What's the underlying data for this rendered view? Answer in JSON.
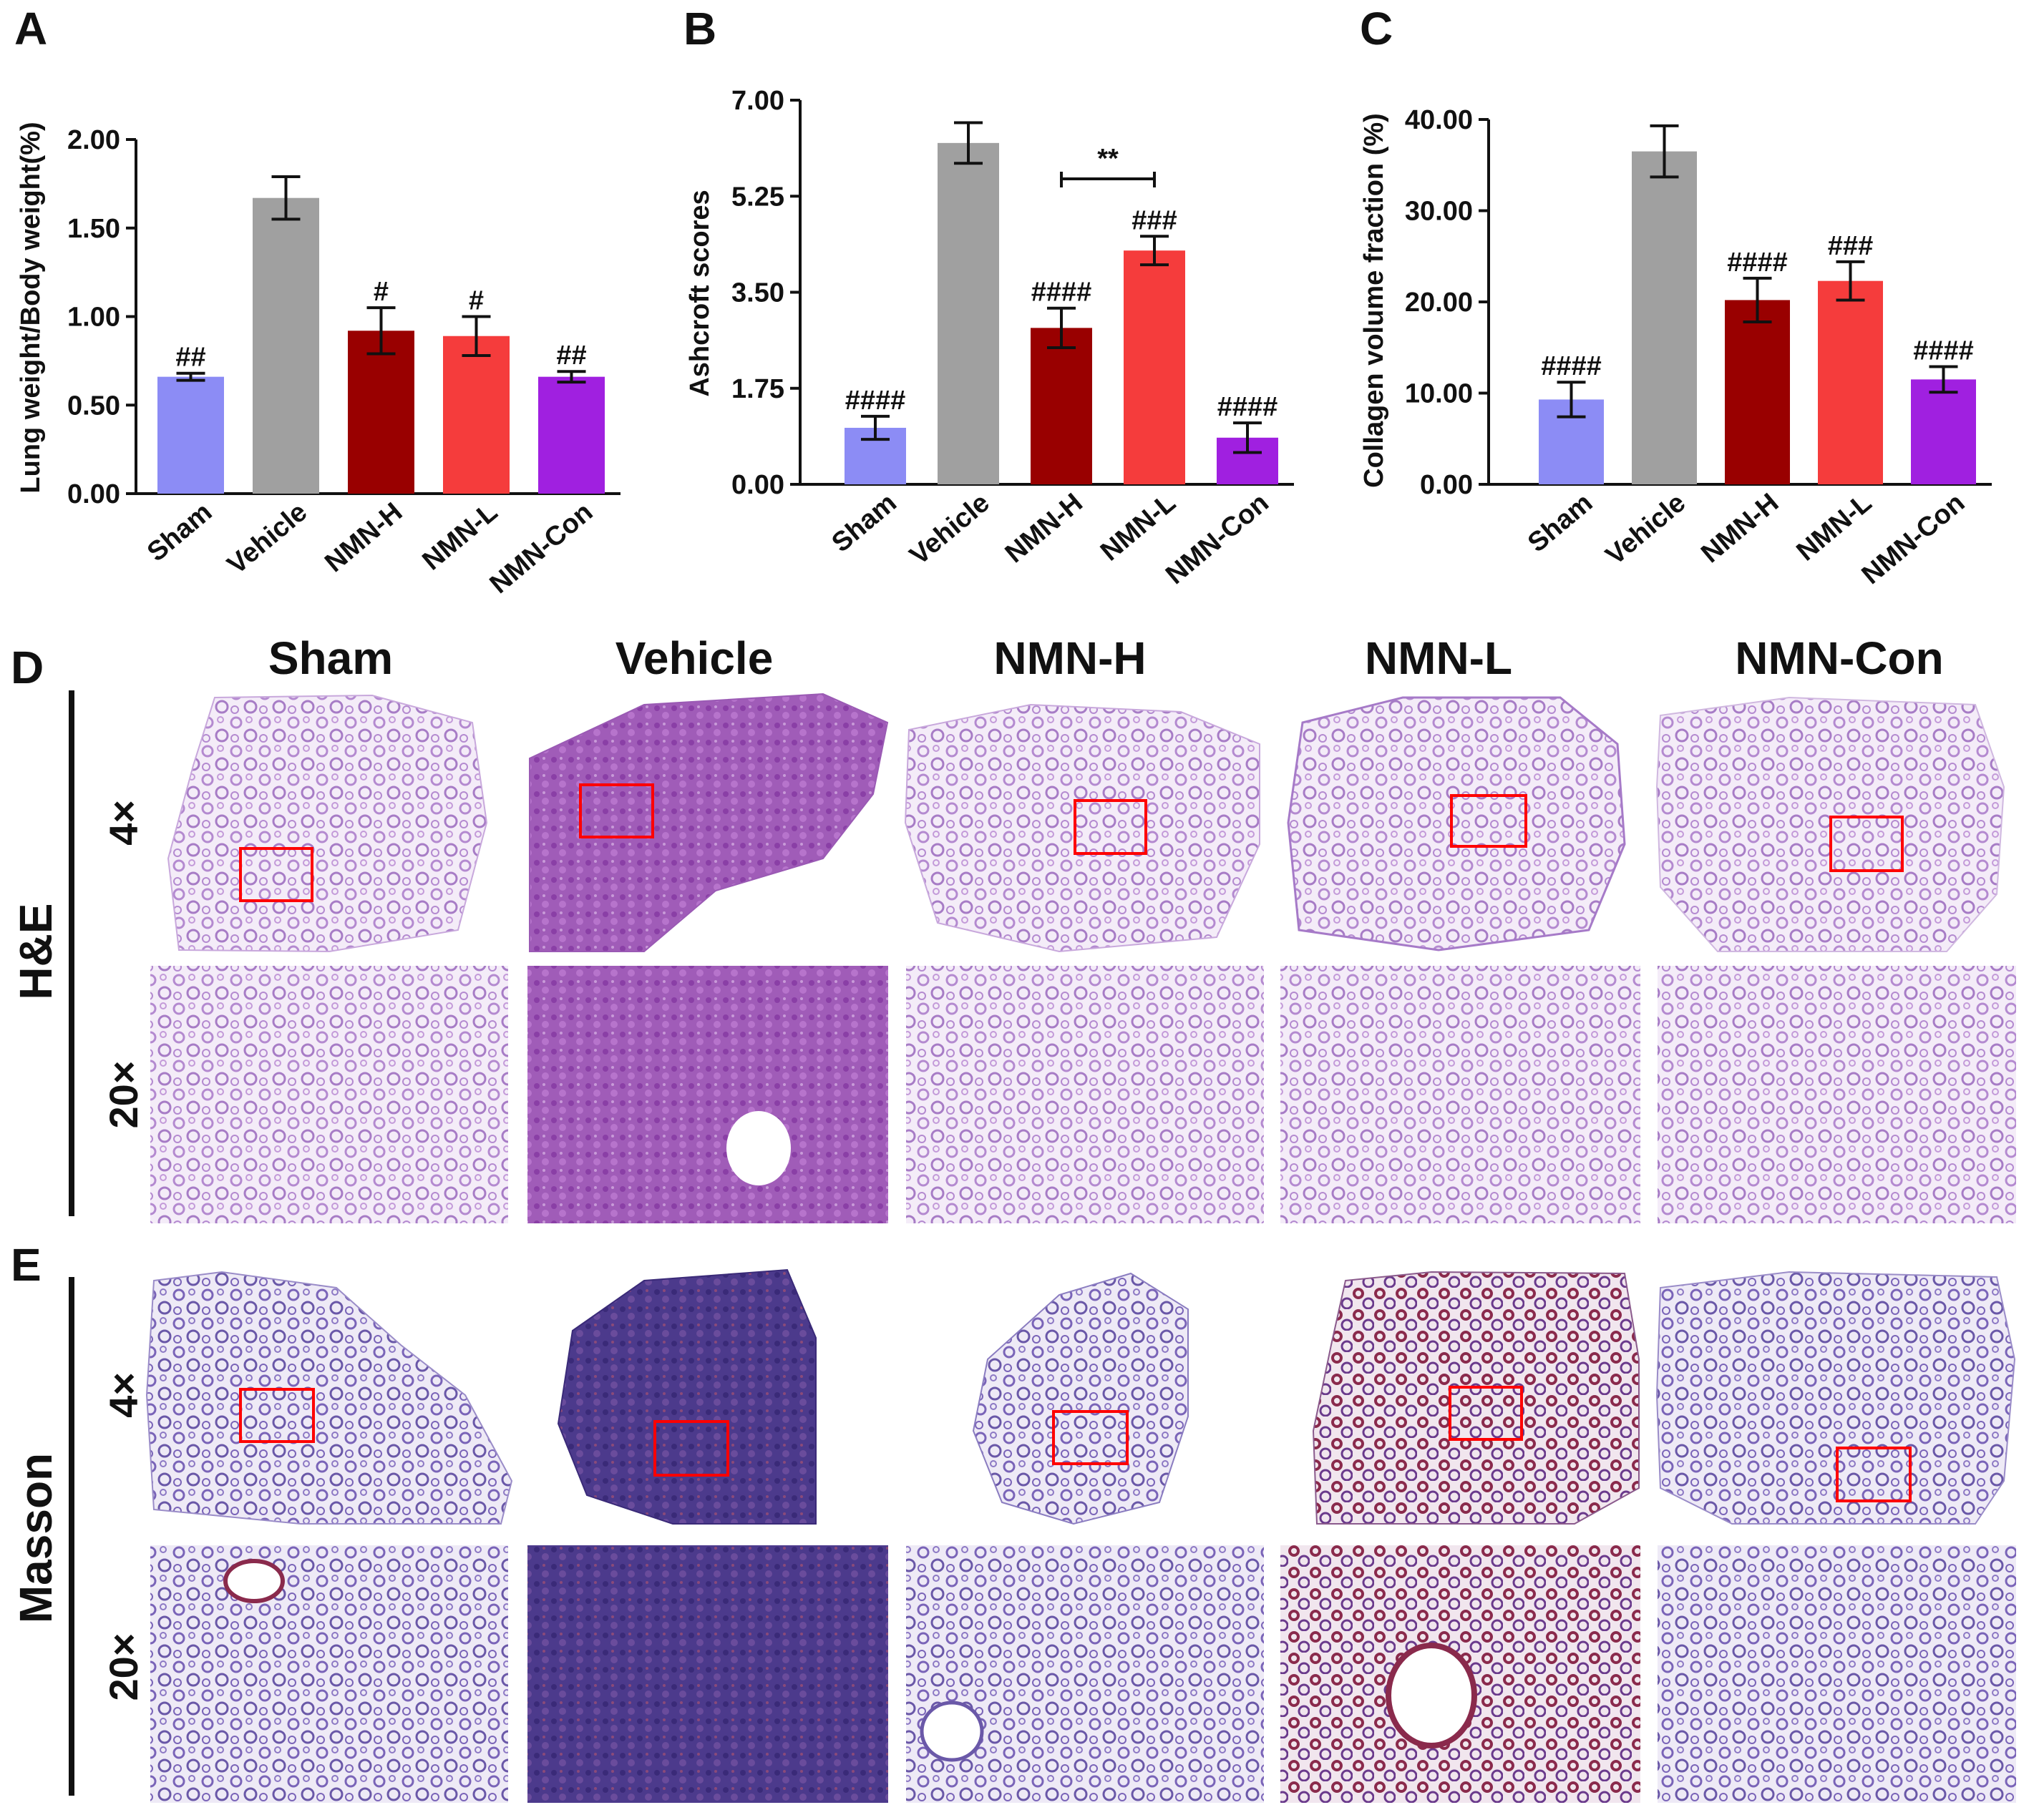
{
  "colors": {
    "Sham": "#8c8cf5",
    "Vehicle": "#a0a0a0",
    "NMN-H": "#990000",
    "NMN-L": "#f53c3c",
    "NMN-Con": "#a020e0",
    "roi_box": "#ff0000",
    "he_stain": "#b48ad0",
    "masson_stain": "#7a64b8"
  },
  "chart_data": [
    {
      "panel": "A",
      "type": "bar",
      "ylabel": "Lung weight/Body weight(%)",
      "categories": [
        "Sham",
        "Vehicle",
        "NMN-H",
        "NMN-L",
        "NMN-Con"
      ],
      "values": [
        0.66,
        1.67,
        0.92,
        0.89,
        0.66
      ],
      "errors": [
        0.02,
        0.12,
        0.13,
        0.11,
        0.03
      ],
      "significance": [
        "##",
        "",
        "#",
        "#",
        "##"
      ],
      "ylim": [
        0,
        2
      ],
      "yticks": [
        "0.00",
        "0.50",
        "1.00",
        "1.50",
        "2.00"
      ],
      "grid": false
    },
    {
      "panel": "B",
      "type": "bar",
      "ylabel": "Ashcroft scores",
      "categories": [
        "Sham",
        "Vehicle",
        "NMN-H",
        "NMN-L",
        "NMN-Con"
      ],
      "values": [
        1.03,
        6.22,
        2.85,
        4.26,
        0.85
      ],
      "errors": [
        0.21,
        0.37,
        0.36,
        0.26,
        0.27
      ],
      "significance": [
        "####",
        "",
        "####",
        "###",
        "####"
      ],
      "bracket": {
        "from": "NMN-H",
        "to": "NMN-L",
        "label": "**"
      },
      "ylim": [
        0,
        7
      ],
      "yticks": [
        "0.00",
        "1.75",
        "3.50",
        "5.25",
        "7.00"
      ],
      "grid": false
    },
    {
      "panel": "C",
      "type": "bar",
      "ylabel": "Collagen volume fraction (%)",
      "categories": [
        "Sham",
        "Vehicle",
        "NMN-H",
        "NMN-L",
        "NMN-Con"
      ],
      "values": [
        9.3,
        36.5,
        20.2,
        22.3,
        11.5
      ],
      "errors": [
        1.9,
        2.8,
        2.4,
        2.1,
        1.4
      ],
      "significance": [
        "####",
        "",
        "####",
        "###",
        "####"
      ],
      "ylim": [
        0,
        40
      ],
      "yticks": [
        "0.00",
        "10.00",
        "20.00",
        "30.00",
        "40.00"
      ],
      "grid": false
    }
  ],
  "histology": {
    "columns": [
      "Sham",
      "Vehicle",
      "NMN-H",
      "NMN-L",
      "NMN-Con"
    ],
    "panel_d": {
      "letter": "D",
      "label": "H&E",
      "rows": [
        "4×",
        "20×"
      ]
    },
    "panel_e": {
      "letter": "E",
      "label": "Masson",
      "rows": [
        "4×",
        "20×"
      ]
    }
  }
}
